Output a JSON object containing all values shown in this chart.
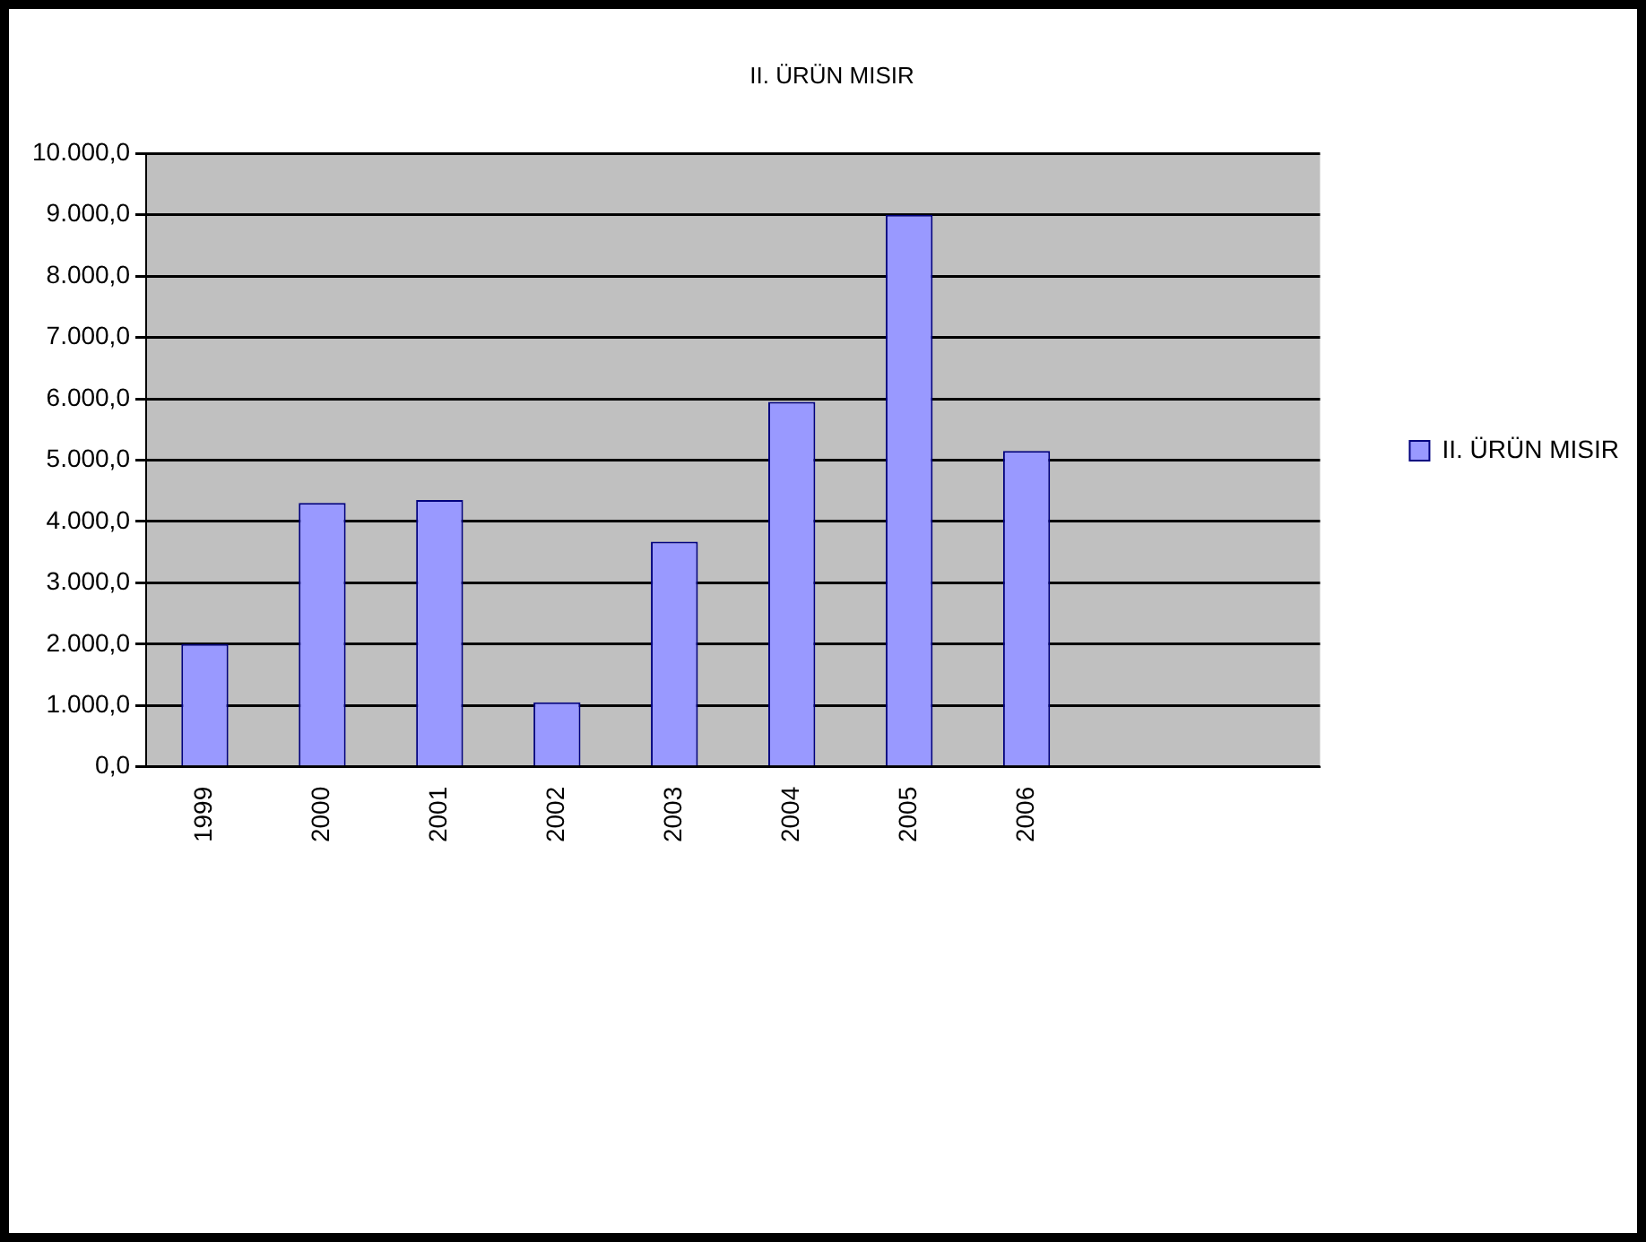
{
  "chart_data": {
    "type": "bar",
    "title": "II. ÜRÜN MISIR",
    "categories": [
      "1999",
      "2000",
      "2001",
      "2002",
      "2003",
      "2004",
      "2005",
      "2006",
      null,
      null
    ],
    "series": [
      {
        "name": "II. ÜRÜN MISIR",
        "color": "#9999ff",
        "values": [
          2000,
          4300,
          4350,
          1050,
          3670,
          5950,
          9000,
          5150,
          null,
          null
        ]
      }
    ],
    "ylim": [
      0,
      10000
    ],
    "yticks": [
      {
        "value": 0,
        "label": "0,0"
      },
      {
        "value": 1000,
        "label": "1.000,0"
      },
      {
        "value": 2000,
        "label": "2.000,0"
      },
      {
        "value": 3000,
        "label": "3.000,0"
      },
      {
        "value": 4000,
        "label": "4.000,0"
      },
      {
        "value": 5000,
        "label": "5.000,0"
      },
      {
        "value": 6000,
        "label": "6.000,0"
      },
      {
        "value": 7000,
        "label": "7.000,0"
      },
      {
        "value": 8000,
        "label": "8.000,0"
      },
      {
        "value": 9000,
        "label": "9.000,0"
      },
      {
        "value": 10000,
        "label": "10.000,0"
      }
    ],
    "grid": "y",
    "legend": "right"
  }
}
